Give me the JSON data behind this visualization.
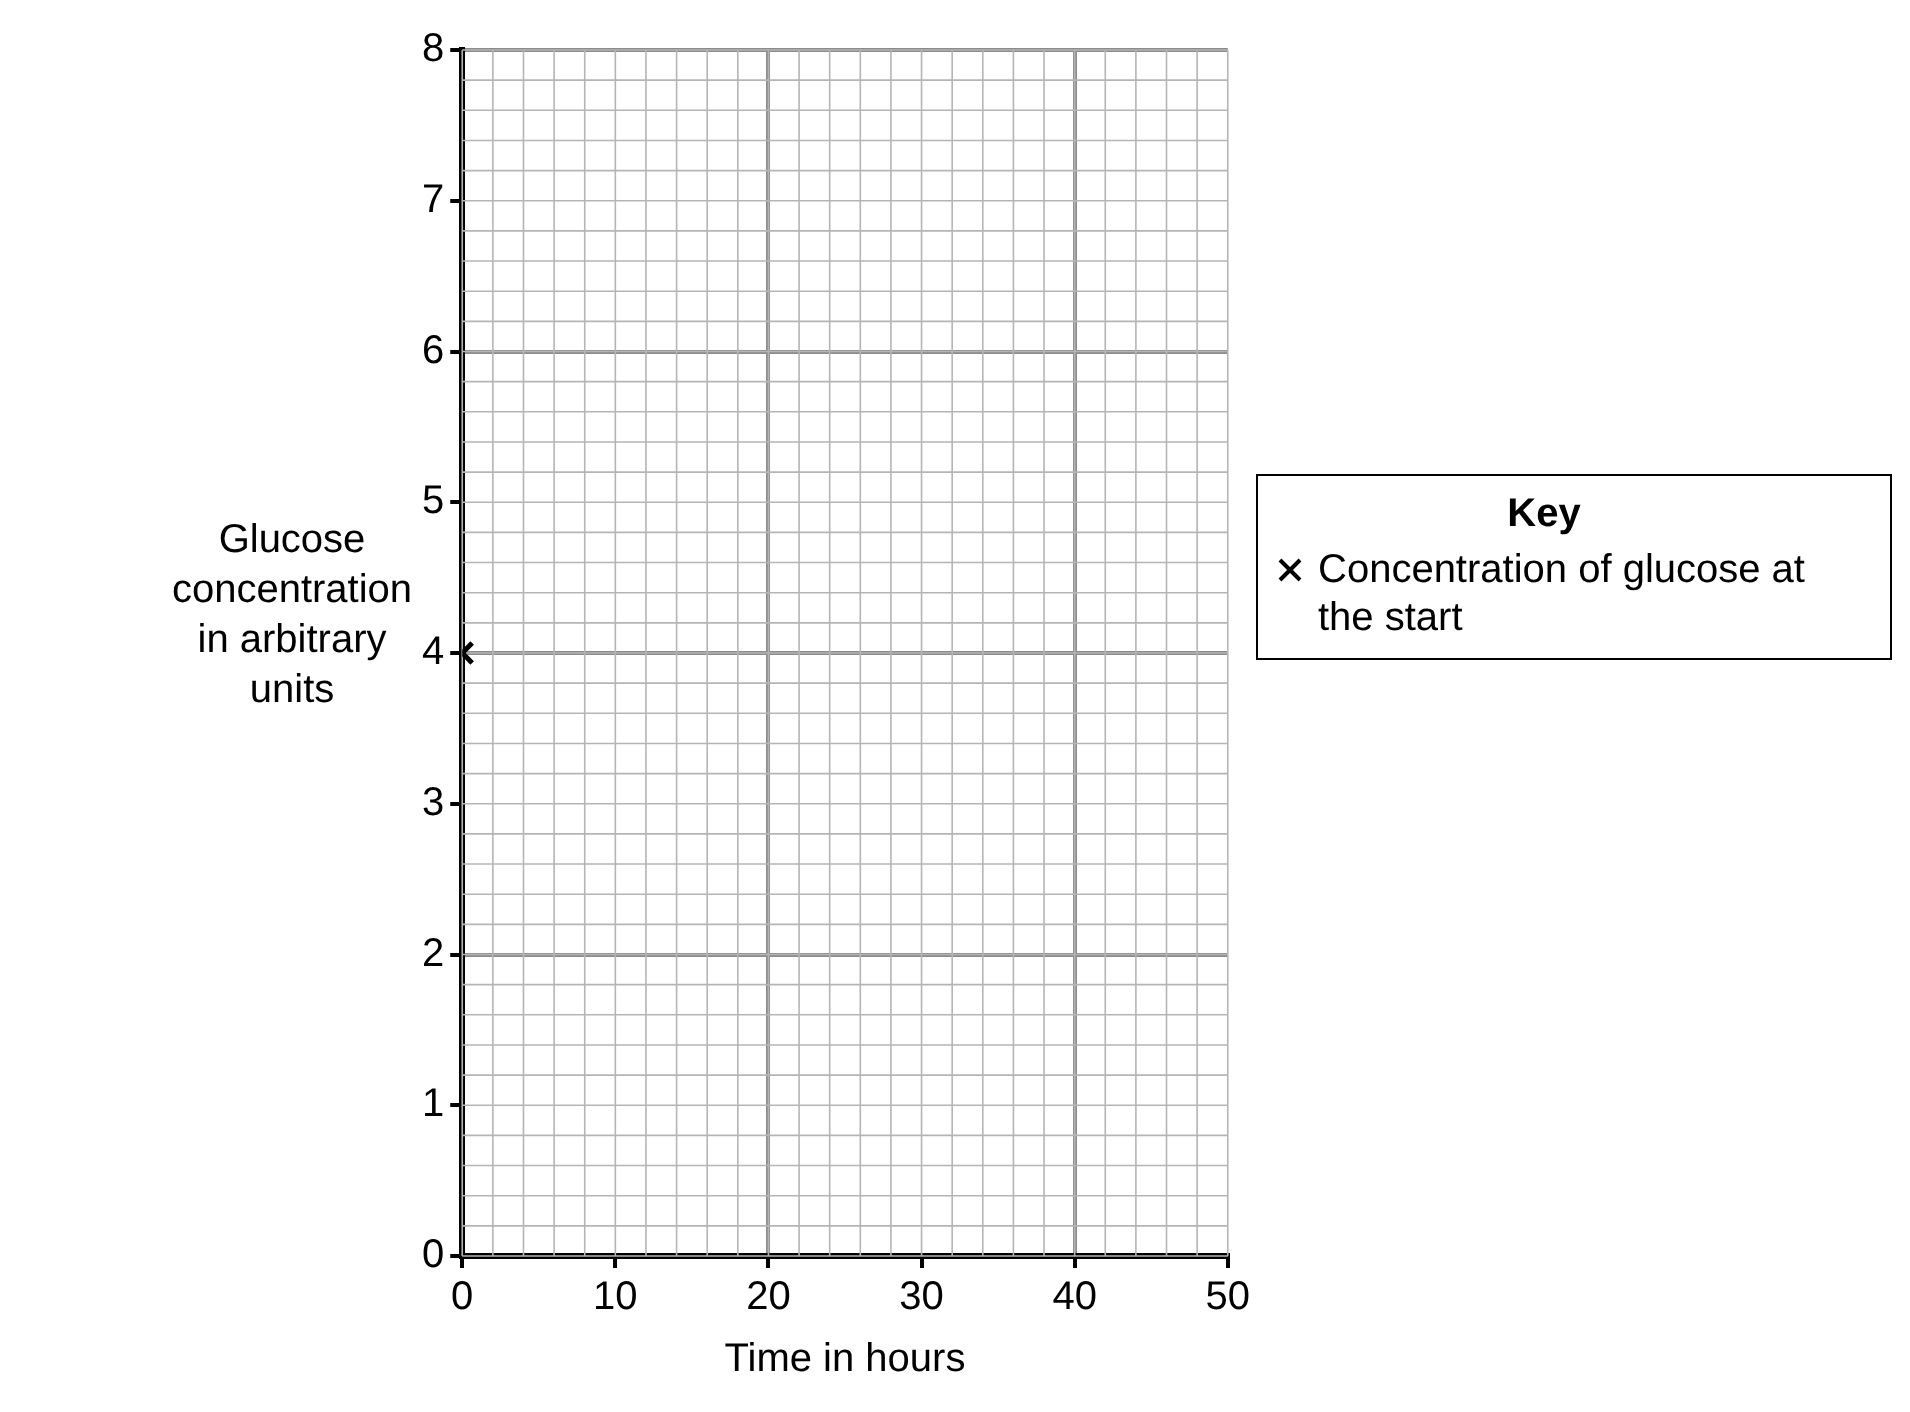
{
  "chart_data": {
    "type": "scatter",
    "xlabel": "Time in hours",
    "ylabel": "Glucose concentration in arbitrary units",
    "legend_title": "Key",
    "series": [
      {
        "name": "Concentration of glucose at the start",
        "color": "#000000",
        "x": [
          0
        ],
        "values": [
          4
        ]
      }
    ],
    "xlim": [
      0,
      50
    ],
    "xticks": [
      0,
      10,
      20,
      30,
      40,
      50
    ],
    "ylim": [
      0,
      8
    ],
    "yticks": [
      0,
      1,
      2,
      3,
      4,
      5,
      6,
      7,
      8
    ],
    "grid": true,
    "legend": "right",
    "marker": "cross"
  }
}
